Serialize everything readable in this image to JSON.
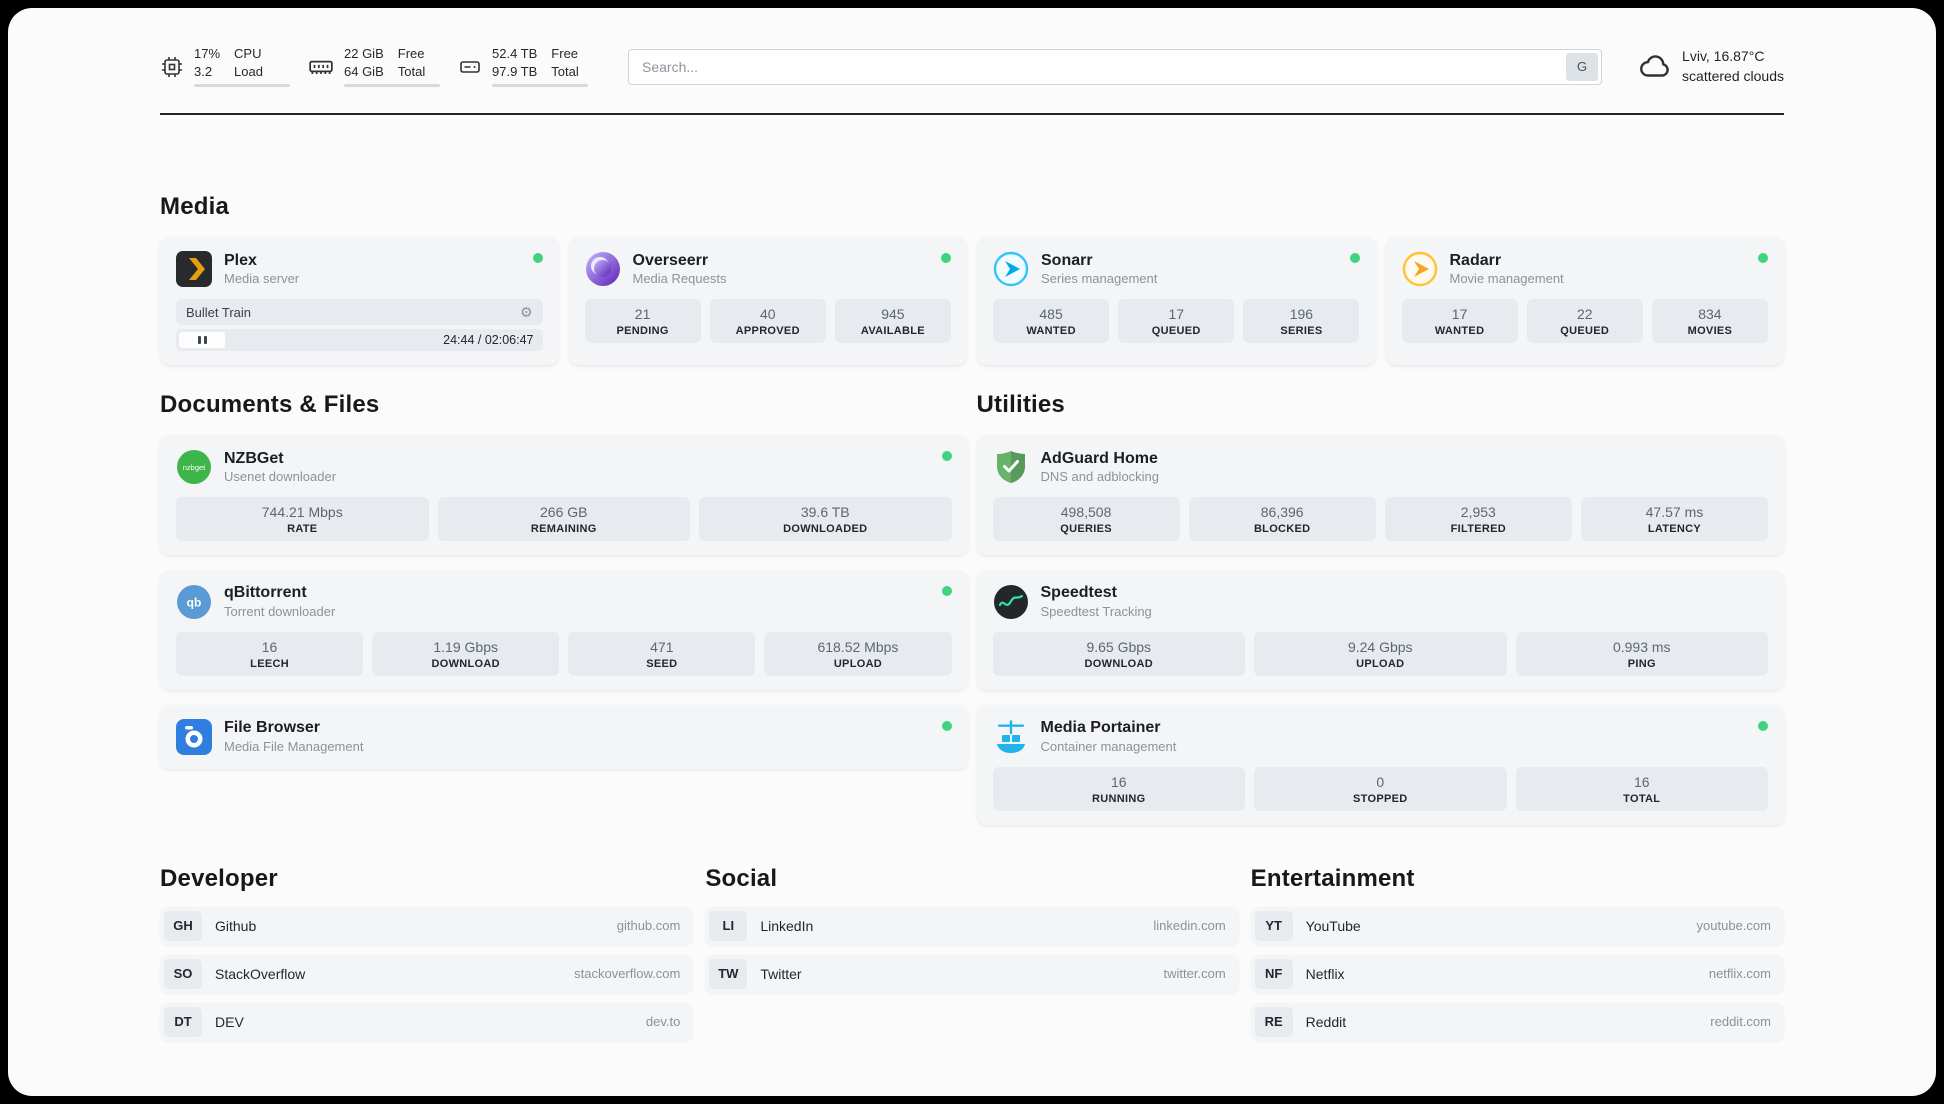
{
  "page": {
    "status_color": "#40d47e"
  },
  "topbar": {
    "cpu": {
      "value1": "17%",
      "value2": "3.2",
      "label1": "CPU",
      "label2": "Load",
      "percent": 17
    },
    "memory": {
      "value1": "22 GiB",
      "value2": "64 GiB",
      "label1": "Free",
      "label2": "Total",
      "percent": 66
    },
    "disk": {
      "value1": "52.4 TB",
      "value2": "97.9 TB",
      "label1": "Free",
      "label2": "Total",
      "percent": 46
    },
    "search": {
      "placeholder": "Search...",
      "engine": "G"
    },
    "weather": {
      "location": "Lviv, 16.87°C",
      "condition": "scattered clouds"
    }
  },
  "sections": {
    "media": {
      "title": "Media",
      "plex": {
        "name": "Plex",
        "desc": "Media server",
        "track": "Bullet Train",
        "time": "24:44 / 02:06:47"
      },
      "overseerr": {
        "name": "Overseerr",
        "desc": "Media Requests",
        "stats": [
          {
            "value": "21",
            "label": "PENDING"
          },
          {
            "value": "40",
            "label": "APPROVED"
          },
          {
            "value": "945",
            "label": "AVAILABLE"
          }
        ]
      },
      "sonarr": {
        "name": "Sonarr",
        "desc": "Series management",
        "stats": [
          {
            "value": "485",
            "label": "WANTED"
          },
          {
            "value": "17",
            "label": "QUEUED"
          },
          {
            "value": "196",
            "label": "SERIES"
          }
        ]
      },
      "radarr": {
        "name": "Radarr",
        "desc": "Movie management",
        "stats": [
          {
            "value": "17",
            "label": "WANTED"
          },
          {
            "value": "22",
            "label": "QUEUED"
          },
          {
            "value": "834",
            "label": "MOVIES"
          }
        ]
      }
    },
    "documents": {
      "title": "Documents & Files",
      "nzbget": {
        "name": "NZBGet",
        "desc": "Usenet downloader",
        "stats": [
          {
            "value": "744.21 Mbps",
            "label": "RATE"
          },
          {
            "value": "266 GB",
            "label": "REMAINING"
          },
          {
            "value": "39.6 TB",
            "label": "DOWNLOADED"
          }
        ]
      },
      "qbittorrent": {
        "name": "qBittorrent",
        "desc": "Torrent downloader",
        "stats": [
          {
            "value": "16",
            "label": "LEECH"
          },
          {
            "value": "1.19 Gbps",
            "label": "DOWNLOAD"
          },
          {
            "value": "471",
            "label": "SEED"
          },
          {
            "value": "618.52 Mbps",
            "label": "UPLOAD"
          }
        ]
      },
      "filebrowser": {
        "name": "File Browser",
        "desc": "Media File Management"
      }
    },
    "utilities": {
      "title": "Utilities",
      "adguard": {
        "name": "AdGuard Home",
        "desc": "DNS and adblocking",
        "stats": [
          {
            "value": "498,508",
            "label": "QUERIES"
          },
          {
            "value": "86,396",
            "label": "BLOCKED"
          },
          {
            "value": "2,953",
            "label": "FILTERED"
          },
          {
            "value": "47.57 ms",
            "label": "LATENCY"
          }
        ]
      },
      "speedtest": {
        "name": "Speedtest",
        "desc": "Speedtest Tracking",
        "stats": [
          {
            "value": "9.65 Gbps",
            "label": "DOWNLOAD"
          },
          {
            "value": "9.24 Gbps",
            "label": "UPLOAD"
          },
          {
            "value": "0.993 ms",
            "label": "PING"
          }
        ]
      },
      "portainer": {
        "name": "Media Portainer",
        "desc": "Container management",
        "stats": [
          {
            "value": "16",
            "label": "RUNNING"
          },
          {
            "value": "0",
            "label": "STOPPED"
          },
          {
            "value": "16",
            "label": "TOTAL"
          }
        ]
      }
    },
    "developer": {
      "title": "Developer",
      "links": [
        {
          "abbr": "GH",
          "name": "Github",
          "url": "github.com"
        },
        {
          "abbr": "SO",
          "name": "StackOverflow",
          "url": "stackoverflow.com"
        },
        {
          "abbr": "DT",
          "name": "DEV",
          "url": "dev.to"
        }
      ]
    },
    "social": {
      "title": "Social",
      "links": [
        {
          "abbr": "LI",
          "name": "LinkedIn",
          "url": "linkedin.com"
        },
        {
          "abbr": "TW",
          "name": "Twitter",
          "url": "twitter.com"
        }
      ]
    },
    "entertainment": {
      "title": "Entertainment",
      "links": [
        {
          "abbr": "YT",
          "name": "YouTube",
          "url": "youtube.com"
        },
        {
          "abbr": "NF",
          "name": "Netflix",
          "url": "netflix.com"
        },
        {
          "abbr": "RE",
          "name": "Reddit",
          "url": "reddit.com"
        }
      ]
    }
  }
}
